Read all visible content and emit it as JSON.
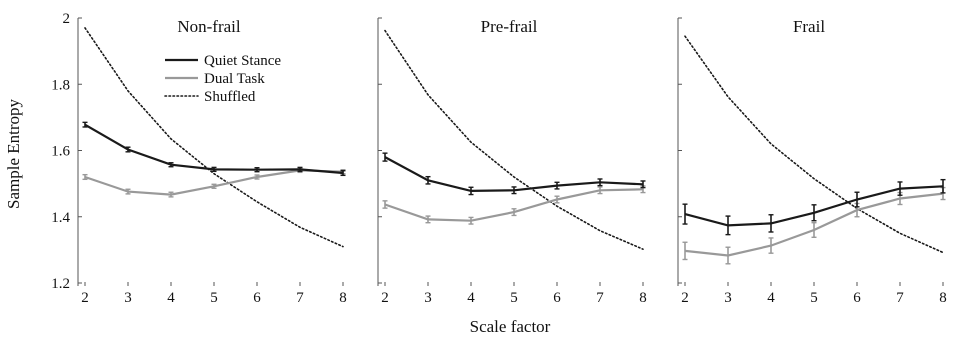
{
  "chart_data": {
    "type": "line",
    "ylabel": "Sample Entropy",
    "xlabel": "Scale factor",
    "x": [
      2,
      3,
      4,
      5,
      6,
      7,
      8
    ],
    "xticks": [
      "2",
      "3",
      "4",
      "5",
      "6",
      "7",
      "8"
    ],
    "yticks": [
      "1.2",
      "1.4",
      "1.6",
      "1.8",
      "2"
    ],
    "xlim": [
      2,
      8
    ],
    "ylim": [
      1.2,
      2.0
    ],
    "grid": false,
    "legend": {
      "placement": "top-right of first panel",
      "entries": [
        {
          "label": "Quiet Stance",
          "color": "#1a1a1a",
          "style": "solid"
        },
        {
          "label": "Dual Task",
          "color": "#999999",
          "style": "solid"
        },
        {
          "label": "Shuffled",
          "color": "#1a1a1a",
          "style": "dotted"
        }
      ]
    },
    "panels": [
      {
        "title": "Non-frail",
        "series": [
          {
            "name": "Quiet Stance",
            "values": [
              1.678,
              1.603,
              1.557,
              1.543,
              1.542,
              1.543,
              1.532
            ],
            "error": [
              0.007,
              0.007,
              0.006,
              0.006,
              0.006,
              0.006,
              0.007
            ]
          },
          {
            "name": "Dual Task",
            "values": [
              1.52,
              1.476,
              1.467,
              1.492,
              1.52,
              1.54,
              1.536
            ],
            "error": [
              0.007,
              0.007,
              0.007,
              0.006,
              0.006,
              0.006,
              0.006
            ]
          },
          {
            "name": "Shuffled",
            "values": [
              1.97,
              1.78,
              1.635,
              1.53,
              1.445,
              1.368,
              1.31
            ],
            "error": null
          }
        ]
      },
      {
        "title": "Pre-frail",
        "series": [
          {
            "name": "Quiet Stance",
            "values": [
              1.58,
              1.51,
              1.478,
              1.48,
              1.494,
              1.504,
              1.498
            ],
            "error": [
              0.012,
              0.011,
              0.011,
              0.01,
              0.01,
              0.01,
              0.01
            ]
          },
          {
            "name": "Dual Task",
            "values": [
              1.437,
              1.392,
              1.388,
              1.414,
              1.452,
              1.48,
              1.483
            ],
            "error": [
              0.011,
              0.01,
              0.01,
              0.01,
              0.01,
              0.01,
              0.01
            ]
          },
          {
            "name": "Shuffled",
            "values": [
              1.962,
              1.768,
              1.625,
              1.52,
              1.432,
              1.358,
              1.302
            ],
            "error": null
          }
        ]
      },
      {
        "title": "Frail",
        "series": [
          {
            "name": "Quiet Stance",
            "values": [
              1.408,
              1.374,
              1.38,
              1.412,
              1.452,
              1.485,
              1.492
            ],
            "error": [
              0.03,
              0.028,
              0.026,
              0.024,
              0.022,
              0.02,
              0.02
            ]
          },
          {
            "name": "Dual Task",
            "values": [
              1.297,
              1.283,
              1.313,
              1.36,
              1.42,
              1.455,
              1.47
            ],
            "error": [
              0.026,
              0.025,
              0.023,
              0.022,
              0.02,
              0.018,
              0.018
            ]
          },
          {
            "name": "Shuffled",
            "values": [
              1.945,
              1.762,
              1.62,
              1.515,
              1.425,
              1.35,
              1.292
            ],
            "error": null
          }
        ]
      }
    ]
  }
}
